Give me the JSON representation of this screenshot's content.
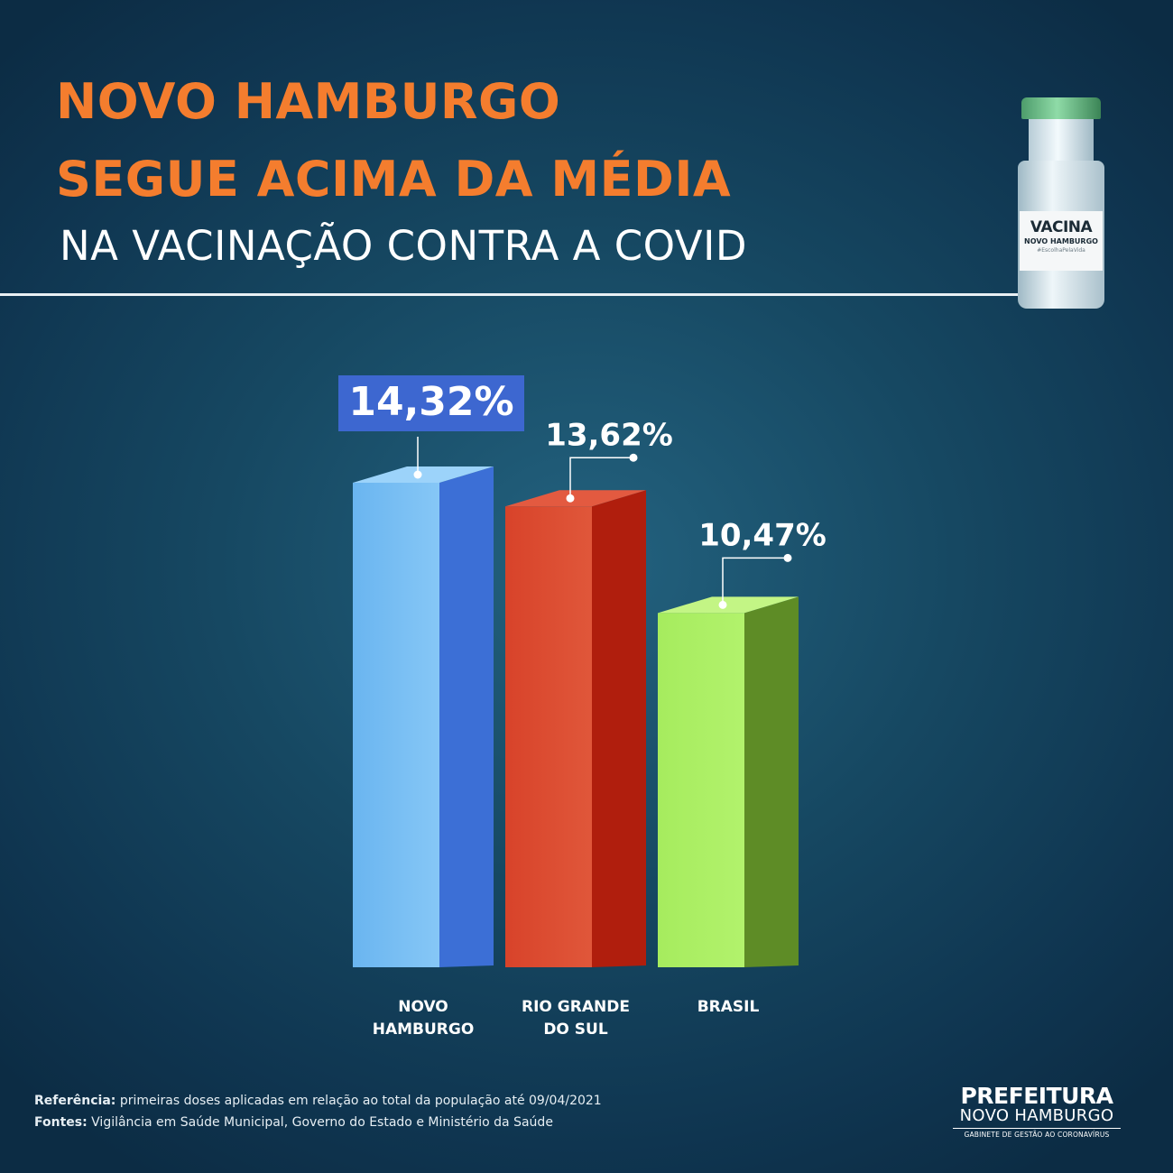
{
  "header": {
    "title_line1": "NOVO HAMBURGO",
    "title_line2": "SEGUE ACIMA DA MÉDIA",
    "subtitle": "NA VACINAÇÃO CONTRA A COVID"
  },
  "vial": {
    "label_main": "VACINA",
    "label_sub": "NOVO HAMBURGO",
    "label_tag": "#EscolhaPelaVida"
  },
  "chart_data": {
    "type": "bar",
    "categories": [
      "NOVO HAMBURGO",
      "RIO GRANDE DO SUL",
      "BRASIL"
    ],
    "category_lines": [
      [
        "NOVO",
        "HAMBURGO"
      ],
      [
        "RIO GRANDE",
        "DO SUL"
      ],
      [
        "BRASIL"
      ]
    ],
    "values": [
      14.32,
      13.62,
      10.47
    ],
    "value_labels": [
      "14,32%",
      "13,62%",
      "10,47%"
    ],
    "colors": {
      "front_top": [
        "#6ab5f0",
        "#d8432a",
        "#a6ec5e"
      ],
      "front_bottom": [
        "#86c7f6",
        "#e0573a",
        "#b2f26c"
      ],
      "side": [
        "#3c6fd6",
        "#b01e0d",
        "#5e8c26"
      ],
      "top": [
        "#9cd3fa",
        "#e35a40",
        "#c3f585"
      ],
      "highlight_box": "#3d67d0"
    },
    "highlighted_index": 0,
    "title": "",
    "xlabel": "",
    "ylabel": "",
    "grid": false
  },
  "footer": {
    "reference_label": "Referência:",
    "reference_text": " primeiras doses aplicadas em relação ao total da população até 09/04/2021",
    "sources_label": "Fontes:",
    "sources_text": " Vigilância em Saúde Municipal, Governo do Estado e Ministério da Saúde"
  },
  "logo": {
    "line1": "PREFEITURA",
    "line2": "NOVO HAMBURGO",
    "line3": "GABINETE DE GESTÃO AO CORONAVÍRUS"
  }
}
